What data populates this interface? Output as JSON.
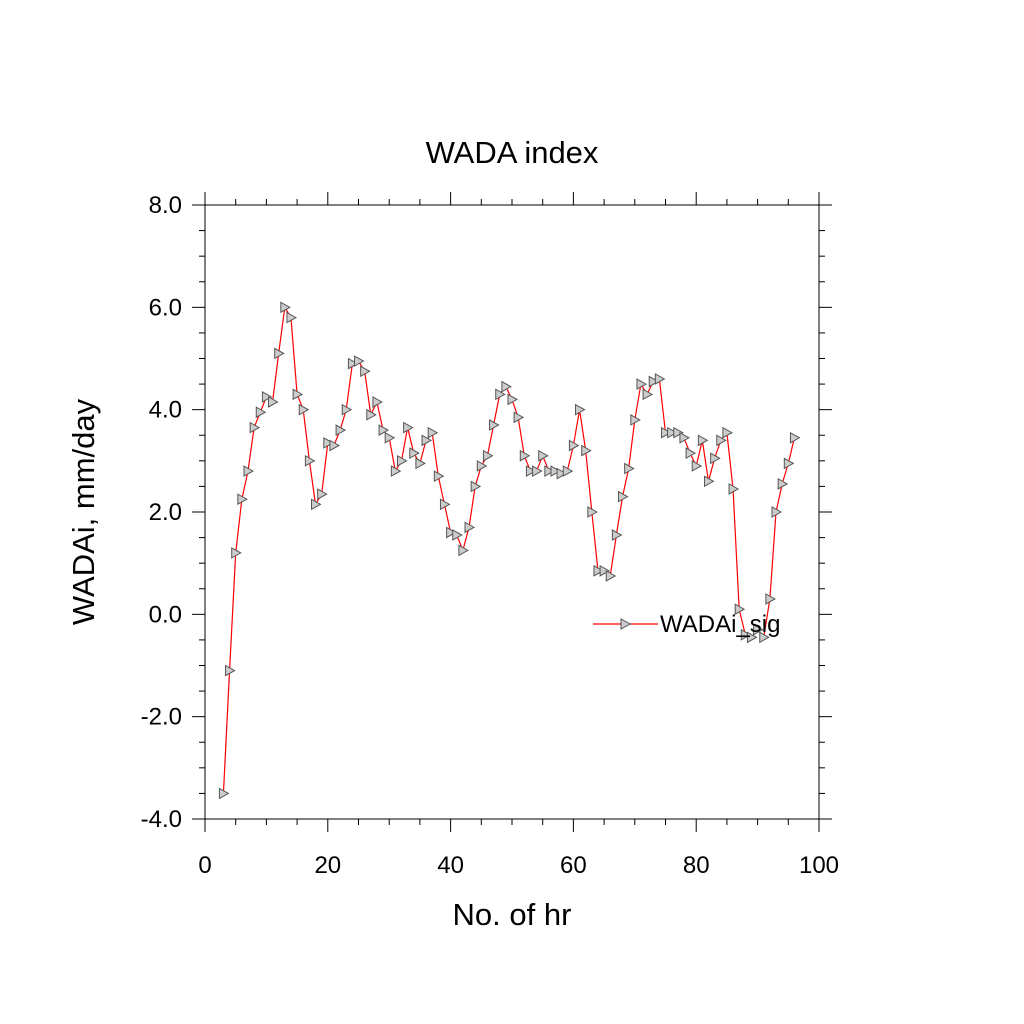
{
  "chart_data": {
    "type": "line",
    "title": "WADA index",
    "xlabel": "No. of hr",
    "ylabel": "WADAi, mm/day",
    "xlim": [
      0,
      100
    ],
    "ylim": [
      -4.0,
      8.0
    ],
    "x_ticks": [
      0,
      20,
      40,
      60,
      80,
      100
    ],
    "x_tick_labels": [
      "0",
      "20",
      "40",
      "60",
      "80",
      "100"
    ],
    "y_ticks": [
      -4.0,
      -2.0,
      0.0,
      2.0,
      4.0,
      6.0,
      8.0
    ],
    "y_tick_labels": [
      "-4.0",
      "-2.0",
      "0.0",
      "2.0",
      "4.0",
      "6.0",
      "8.0"
    ],
    "grid": false,
    "legend_position": "right-center",
    "series": [
      {
        "name": "WADAi_sig",
        "color": "#ff0000",
        "marker": "triangle-right",
        "marker_color": "#555555",
        "x": [
          3,
          4,
          5,
          6,
          7,
          8,
          9,
          10,
          11,
          12,
          13,
          14,
          15,
          16,
          17,
          18,
          19,
          20,
          21,
          22,
          23,
          24,
          25,
          26,
          27,
          28,
          29,
          30,
          31,
          32,
          33,
          34,
          35,
          36,
          37,
          38,
          39,
          40,
          41,
          42,
          43,
          44,
          45,
          46,
          47,
          48,
          49,
          50,
          51,
          52,
          53,
          54,
          55,
          56,
          57,
          58,
          59,
          60,
          61,
          62,
          63,
          64,
          65,
          66,
          67,
          68,
          69,
          70,
          71,
          72,
          73,
          74,
          75,
          76,
          77,
          78,
          79,
          80,
          81,
          82,
          83,
          84,
          85,
          86,
          87,
          88,
          89,
          90,
          91,
          92,
          93,
          94,
          95,
          96
        ],
        "values": [
          -3.5,
          -1.1,
          1.2,
          2.25,
          2.8,
          3.65,
          3.95,
          4.25,
          4.15,
          5.1,
          6.0,
          5.8,
          4.3,
          4.0,
          3.0,
          2.15,
          2.35,
          3.35,
          3.3,
          3.6,
          4.0,
          4.9,
          4.95,
          4.75,
          3.9,
          4.15,
          3.6,
          3.45,
          2.8,
          3.0,
          3.65,
          3.15,
          2.95,
          3.4,
          3.55,
          2.7,
          2.15,
          1.6,
          1.55,
          1.25,
          1.7,
          2.5,
          2.9,
          3.1,
          3.7,
          4.3,
          4.45,
          4.2,
          3.85,
          3.1,
          2.8,
          2.8,
          3.1,
          2.8,
          2.8,
          2.75,
          2.8,
          3.3,
          4.0,
          3.2,
          2.0,
          0.85,
          0.85,
          0.75,
          1.55,
          2.3,
          2.85,
          3.8,
          4.5,
          4.3,
          4.55,
          4.6,
          3.55,
          3.55,
          3.55,
          3.45,
          3.15,
          2.9,
          3.4,
          2.6,
          3.05,
          3.4,
          3.55,
          2.45,
          0.1,
          -0.4,
          -0.45,
          -0.3,
          -0.45,
          0.3,
          2.0,
          2.55,
          2.95,
          3.45
        ]
      }
    ]
  }
}
